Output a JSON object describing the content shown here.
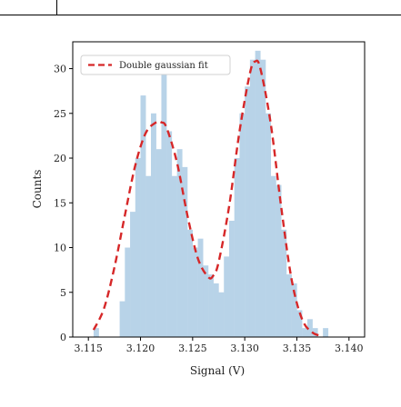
{
  "chart_data": {
    "type": "bar",
    "title": "",
    "xlabel": "Signal (V)",
    "ylabel": "Counts",
    "xlim": [
      3.1135,
      3.1415
    ],
    "ylim": [
      0,
      33
    ],
    "xticks": [
      3.115,
      3.12,
      3.125,
      3.13,
      3.135,
      3.14
    ],
    "xtick_labels": [
      "3.115",
      "3.120",
      "3.125",
      "3.130",
      "3.135",
      "3.140"
    ],
    "yticks": [
      0,
      5,
      10,
      15,
      20,
      25,
      30
    ],
    "ytick_labels": [
      "0",
      "5",
      "10",
      "15",
      "20",
      "25",
      "30"
    ],
    "grid": false,
    "legend": {
      "position": "top-left",
      "entries": [
        "Double gaussian fit"
      ]
    },
    "colors": {
      "bars": "#b8d3e8",
      "fit": "#d62728"
    },
    "histogram": {
      "bin_width": 0.0005,
      "bins": [
        {
          "x": 3.1155,
          "y": 1
        },
        {
          "x": 3.118,
          "y": 4
        },
        {
          "x": 3.1185,
          "y": 10
        },
        {
          "x": 3.119,
          "y": 14
        },
        {
          "x": 3.1195,
          "y": 20
        },
        {
          "x": 3.12,
          "y": 27
        },
        {
          "x": 3.1205,
          "y": 18
        },
        {
          "x": 3.121,
          "y": 25
        },
        {
          "x": 3.1215,
          "y": 21
        },
        {
          "x": 3.122,
          "y": 30
        },
        {
          "x": 3.1225,
          "y": 23
        },
        {
          "x": 3.123,
          "y": 18
        },
        {
          "x": 3.1235,
          "y": 21
        },
        {
          "x": 3.124,
          "y": 19
        },
        {
          "x": 3.1245,
          "y": 12
        },
        {
          "x": 3.125,
          "y": 10
        },
        {
          "x": 3.1255,
          "y": 11
        },
        {
          "x": 3.126,
          "y": 8
        },
        {
          "x": 3.1265,
          "y": 7
        },
        {
          "x": 3.127,
          "y": 6
        },
        {
          "x": 3.1275,
          "y": 5
        },
        {
          "x": 3.128,
          "y": 9
        },
        {
          "x": 3.1285,
          "y": 13
        },
        {
          "x": 3.129,
          "y": 20
        },
        {
          "x": 3.1295,
          "y": 25
        },
        {
          "x": 3.13,
          "y": 28
        },
        {
          "x": 3.1305,
          "y": 31
        },
        {
          "x": 3.131,
          "y": 32
        },
        {
          "x": 3.1315,
          "y": 31
        },
        {
          "x": 3.132,
          "y": 25
        },
        {
          "x": 3.1325,
          "y": 18
        },
        {
          "x": 3.133,
          "y": 17
        },
        {
          "x": 3.1335,
          "y": 12
        },
        {
          "x": 3.134,
          "y": 7
        },
        {
          "x": 3.1345,
          "y": 6
        },
        {
          "x": 3.135,
          "y": 3
        },
        {
          "x": 3.1355,
          "y": 1
        },
        {
          "x": 3.136,
          "y": 2
        },
        {
          "x": 3.1365,
          "y": 1
        },
        {
          "x": 3.1375,
          "y": 1
        }
      ]
    },
    "fit": {
      "name": "Double gaussian fit",
      "x": [
        3.1155,
        3.1165,
        3.1175,
        3.1185,
        3.1195,
        3.1205,
        3.1215,
        3.122,
        3.1225,
        3.1235,
        3.1245,
        3.1255,
        3.1265,
        3.127,
        3.1275,
        3.1285,
        3.1295,
        3.1305,
        3.131,
        3.1315,
        3.1325,
        3.1335,
        3.1345,
        3.1355,
        3.1365,
        3.1375
      ],
      "y": [
        0.8,
        3.2,
        7.8,
        13.6,
        19.2,
        22.8,
        24.0,
        24.0,
        23.4,
        19.5,
        13.6,
        8.8,
        6.7,
        6.9,
        8.4,
        14.6,
        23.0,
        29.5,
        30.8,
        30.0,
        23.8,
        14.5,
        6.4,
        2.0,
        0.5,
        0.1
      ]
    }
  }
}
